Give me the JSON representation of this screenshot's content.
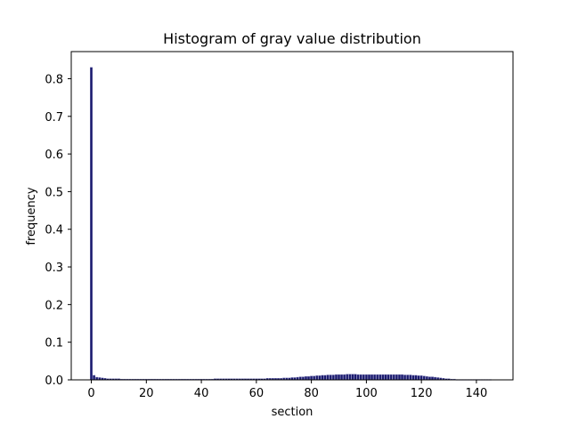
{
  "chart_data": {
    "type": "bar",
    "title": "Histogram of gray value distribution",
    "xlabel": "section",
    "ylabel": "frequency",
    "xlim": [
      -7.3,
      153.3
    ],
    "ylim": [
      0,
      0.872
    ],
    "xticks": [
      0,
      20,
      40,
      60,
      80,
      100,
      120,
      140
    ],
    "yticks": [
      0.0,
      0.1,
      0.2,
      0.3,
      0.4,
      0.5,
      0.6,
      0.7,
      0.8
    ],
    "bar_color": "#1a1a6e",
    "bar_edge_color": "#6a6aa8",
    "grid": false,
    "legend": "none",
    "bins": [
      0,
      1,
      2,
      3,
      4,
      5,
      6,
      7,
      8,
      9,
      10,
      11,
      12,
      13,
      14,
      15,
      16,
      17,
      18,
      19,
      20,
      21,
      22,
      23,
      24,
      25,
      26,
      27,
      28,
      29,
      30,
      31,
      32,
      33,
      34,
      35,
      36,
      37,
      38,
      39,
      40,
      41,
      42,
      43,
      44,
      45,
      46,
      47,
      48,
      49,
      50,
      51,
      52,
      53,
      54,
      55,
      56,
      57,
      58,
      59,
      60,
      61,
      62,
      63,
      64,
      65,
      66,
      67,
      68,
      69,
      70,
      71,
      72,
      73,
      74,
      75,
      76,
      77,
      78,
      79,
      80,
      81,
      82,
      83,
      84,
      85,
      86,
      87,
      88,
      89,
      90,
      91,
      92,
      93,
      94,
      95,
      96,
      97,
      98,
      99,
      100,
      101,
      102,
      103,
      104,
      105,
      106,
      107,
      108,
      109,
      110,
      111,
      112,
      113,
      114,
      115,
      116,
      117,
      118,
      119,
      120,
      121,
      122,
      123,
      124,
      125,
      126,
      127,
      128,
      129,
      130,
      131,
      132,
      133,
      134,
      135,
      136,
      137,
      138,
      139,
      140,
      141,
      142,
      143,
      144,
      145
    ],
    "values": [
      0.83,
      0.012,
      0.007,
      0.006,
      0.005,
      0.004,
      0.003,
      0.003,
      0.003,
      0.003,
      0.003,
      0.002,
      0.002,
      0.002,
      0.002,
      0.002,
      0.002,
      0.002,
      0.002,
      0.002,
      0.002,
      0.002,
      0.002,
      0.002,
      0.002,
      0.002,
      0.002,
      0.002,
      0.002,
      0.002,
      0.002,
      0.002,
      0.002,
      0.002,
      0.002,
      0.002,
      0.002,
      0.002,
      0.002,
      0.002,
      0.002,
      0.002,
      0.002,
      0.002,
      0.002,
      0.003,
      0.003,
      0.003,
      0.003,
      0.003,
      0.003,
      0.003,
      0.003,
      0.003,
      0.003,
      0.003,
      0.003,
      0.003,
      0.003,
      0.003,
      0.003,
      0.003,
      0.003,
      0.003,
      0.004,
      0.004,
      0.004,
      0.004,
      0.004,
      0.004,
      0.005,
      0.005,
      0.005,
      0.006,
      0.006,
      0.007,
      0.008,
      0.008,
      0.009,
      0.009,
      0.01,
      0.01,
      0.011,
      0.011,
      0.012,
      0.012,
      0.013,
      0.013,
      0.013,
      0.014,
      0.014,
      0.014,
      0.014,
      0.015,
      0.015,
      0.015,
      0.015,
      0.014,
      0.014,
      0.014,
      0.014,
      0.014,
      0.014,
      0.014,
      0.014,
      0.014,
      0.014,
      0.014,
      0.014,
      0.014,
      0.014,
      0.014,
      0.014,
      0.014,
      0.013,
      0.013,
      0.013,
      0.012,
      0.012,
      0.011,
      0.011,
      0.01,
      0.009,
      0.008,
      0.008,
      0.007,
      0.006,
      0.005,
      0.004,
      0.003,
      0.003,
      0.002,
      0.002,
      0.001,
      0.001,
      0.001,
      0.001,
      0.001,
      0.001,
      0.001,
      0.001,
      0.001,
      0.001,
      0.001,
      0.001,
      0.001
    ]
  }
}
